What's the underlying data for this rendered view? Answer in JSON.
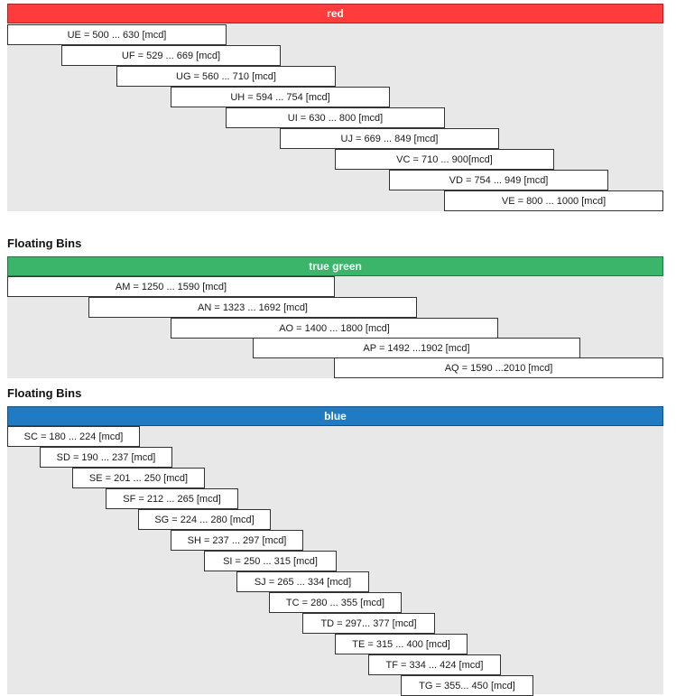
{
  "red_section": {
    "header": "red",
    "color": "#ff3b3b",
    "bins": [
      "UE = 500 ... 630 [mcd]",
      "UF = 529 ... 669 [mcd]",
      "UG = 560 ... 710 [mcd]",
      "UH = 594 ... 754 [mcd]",
      "UI = 630 ... 800 [mcd]",
      "UJ = 669 ... 849 [mcd]",
      "VC = 710 ... 900[mcd]",
      "VD = 754 ... 949 [mcd]",
      "VE = 800 ... 1000 [mcd]"
    ]
  },
  "green_section": {
    "title": "Floating Bins",
    "header": "true green",
    "color": "#3bb56a",
    "bins": [
      "AM = 1250 ... 1590 [mcd]",
      "AN = 1323 ... 1692 [mcd]",
      "AO = 1400 ... 1800 [mcd]",
      "AP = 1492 ...1902 [mcd]",
      "AQ = 1590 ...2010 [mcd]"
    ]
  },
  "blue_section": {
    "title": "Floating Bins",
    "header": "blue",
    "color": "#1f7bc4",
    "bins": [
      "SC = 180 ... 224 [mcd]",
      "SD = 190 ... 237 [mcd]",
      "SE = 201 ... 250 [mcd]",
      "SF = 212 ... 265 [mcd]",
      "SG = 224 ... 280 [mcd]",
      "SH = 237 ... 297 [mcd]",
      "SI = 250 ... 315 [mcd]",
      "SJ = 265 ... 334 [mcd]",
      "TC = 280 ... 355 [mcd]",
      "TD = 297... 377 [mcd]",
      "TE = 315 ... 400 [mcd]",
      "TF = 334 ... 424 [mcd]",
      "TG = 355... 450 [mcd]"
    ]
  }
}
